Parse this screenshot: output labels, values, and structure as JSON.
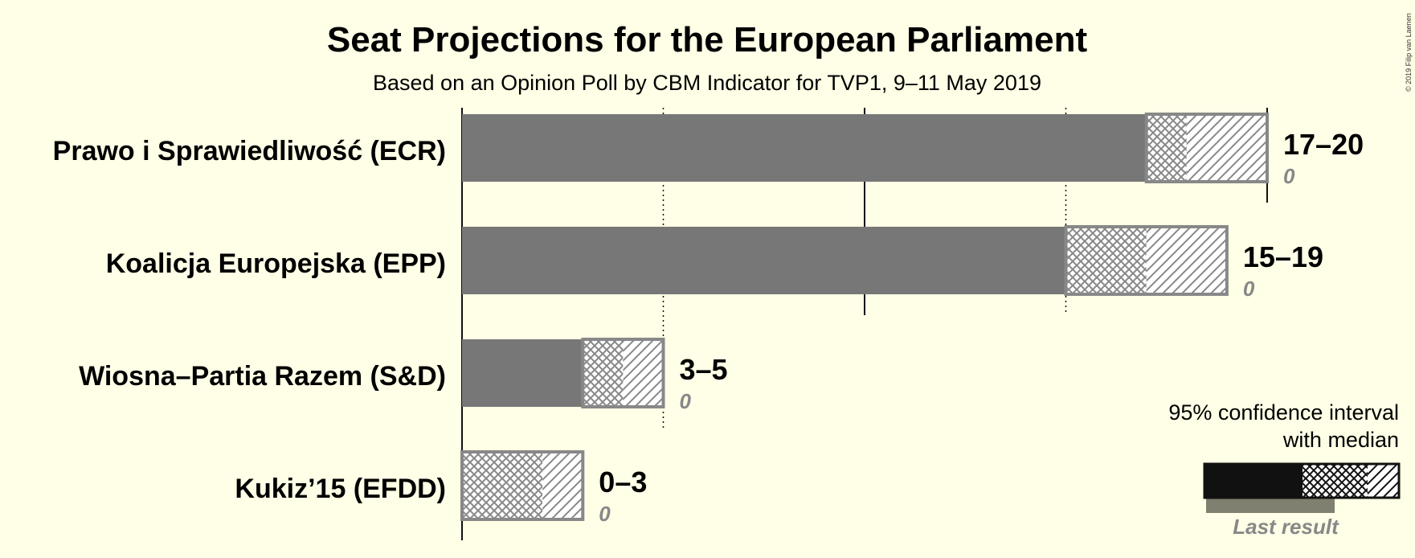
{
  "chart_data": {
    "type": "bar",
    "title": "Seat Projections for the European Parliament",
    "subtitle": "Based on an Opinion Poll by CBM Indicator for TVP1, 9–11 May 2019",
    "categories": [
      "Prawo i Sprawiedliwość (ECR)",
      "Koalicja Europejska (EPP)",
      "Wiosna–Partia Razem (S&D)",
      "Kukiz’15 (EFDD)"
    ],
    "series": [
      {
        "name": "95% confidence interval with median",
        "low": [
          17,
          15,
          3,
          0
        ],
        "median": [
          18,
          17,
          4,
          2
        ],
        "high": [
          20,
          19,
          5,
          3
        ]
      },
      {
        "name": "Last result",
        "values": [
          0,
          0,
          0,
          0
        ]
      }
    ],
    "range_labels": [
      "17–20",
      "15–19",
      "3–5",
      "0–3"
    ],
    "last_labels": [
      "0",
      "0",
      "0",
      "0"
    ],
    "xlim": [
      0,
      20
    ],
    "gridlines": [
      0,
      5,
      10,
      15,
      20
    ],
    "colors": {
      "bar": "#777777",
      "hatch": "#888888",
      "legend_bar": "#111111",
      "last_result": "#808070",
      "background": "#FFFEE6"
    },
    "legend": {
      "ci_label_line1": "95% confidence interval",
      "ci_label_line2": "with median",
      "last_label": "Last result",
      "position": "bottom-right"
    }
  },
  "copyright": "© 2019 Filip van Laenen"
}
